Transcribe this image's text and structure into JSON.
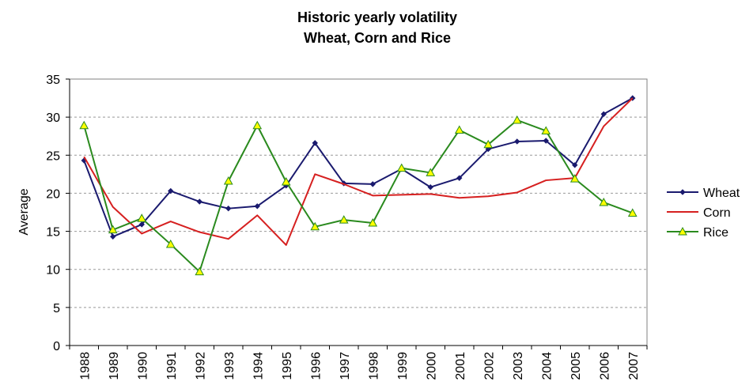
{
  "chart_data": {
    "type": "line",
    "title": "Historic yearly volatility",
    "subtitle": "Wheat, Corn and Rice",
    "xlabel": "",
    "ylabel": "Average",
    "ylim": [
      0,
      35
    ],
    "yticks": [
      0,
      5,
      10,
      15,
      20,
      25,
      30,
      35
    ],
    "grid": true,
    "legend_position": "right",
    "categories": [
      "1988",
      "1989",
      "1990",
      "1991",
      "1992",
      "1993",
      "1994",
      "1995",
      "1996",
      "1997",
      "1998",
      "1999",
      "2000",
      "2001",
      "2002",
      "2003",
      "2004",
      "2005",
      "2006",
      "2007"
    ],
    "series": [
      {
        "name": "Wheat",
        "color": "#1a1a6e",
        "marker": "diamond",
        "values": [
          24.3,
          14.3,
          15.9,
          20.3,
          18.9,
          18.0,
          18.3,
          21.0,
          26.6,
          21.3,
          21.2,
          23.2,
          20.8,
          22.0,
          25.8,
          26.8,
          26.9,
          23.7,
          30.4,
          32.5
        ]
      },
      {
        "name": "Corn",
        "color": "#d62020",
        "marker": "none",
        "values": [
          24.8,
          18.2,
          14.7,
          16.3,
          14.9,
          14.0,
          17.1,
          13.2,
          22.5,
          21.2,
          19.7,
          19.8,
          19.9,
          19.4,
          19.6,
          20.1,
          21.7,
          22.0,
          28.8,
          32.5
        ]
      },
      {
        "name": "Rice",
        "color": "#2a8a1e",
        "marker": "triangle",
        "marker_fill": "#ffff00",
        "values": [
          28.9,
          15.2,
          16.7,
          13.3,
          9.7,
          21.6,
          28.9,
          21.5,
          15.6,
          16.5,
          16.1,
          23.3,
          22.7,
          28.3,
          26.4,
          29.6,
          28.2,
          21.9,
          18.8,
          17.4
        ]
      }
    ]
  }
}
